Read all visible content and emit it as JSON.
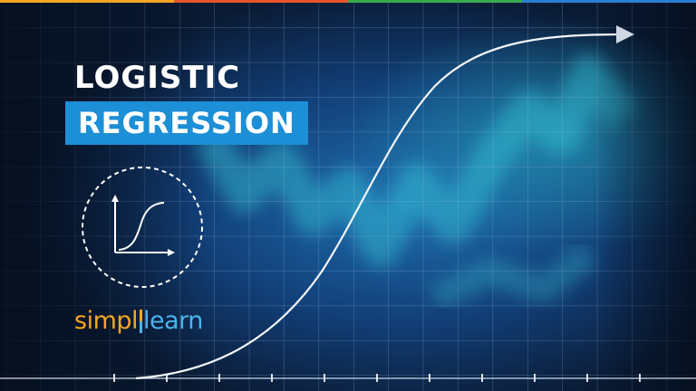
{
  "title": {
    "line1": "LOGISTIC",
    "line2": "REGRESSION"
  },
  "icons": {
    "curve_icon": "sigmoid-curve-icon",
    "arrow": "arrow-head-icon"
  },
  "brand": {
    "part1": "simpl",
    "part2": "learn",
    "color_part1": "#f5a623",
    "color_part2": "#4cb3ee"
  },
  "colors": {
    "accent": "#1c8fd6",
    "background": "#0a1a33",
    "top_bar": [
      "#f5a623",
      "#e8552b",
      "#3aaa4f",
      "#2a7fd4"
    ]
  }
}
